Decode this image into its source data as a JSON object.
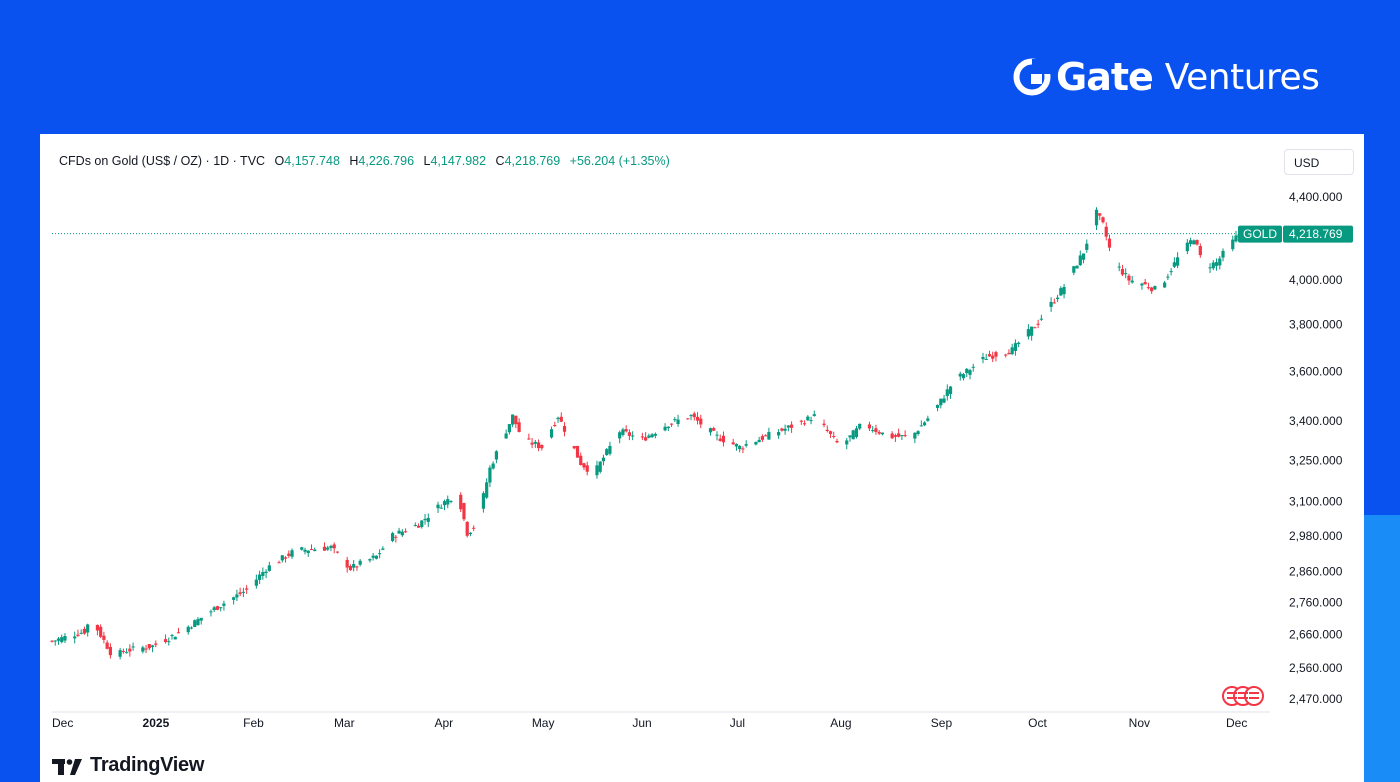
{
  "brand": {
    "name_bold": "Gate",
    "name_light": "Ventures",
    "logo_icon": "gate-logo-icon"
  },
  "header": {
    "symbol": "CFDs on Gold (US$ / OZ) · 1D · TVC",
    "open_label": "O",
    "open": "4,157.748",
    "high_label": "H",
    "high": "4,226.796",
    "low_label": "L",
    "low": "4,147.982",
    "close_label": "C",
    "close": "4,218.769",
    "change": "+56.204 (+1.35%)"
  },
  "currency_button": "USD",
  "footer": {
    "logo_text": "TradingView",
    "logo_icon": "tradingview-logo-icon"
  },
  "colors": {
    "background": "#0a52f0",
    "up": "#089981",
    "down": "#f23645",
    "accent": "#1a8cf7"
  },
  "chart_data": {
    "type": "candlestick",
    "title": "CFDs on Gold (US$ / OZ) · 1D · TVC",
    "scale": "log",
    "ylim": [
      2420,
      4520
    ],
    "y_ticks": [
      4400,
      4000,
      3800,
      3600,
      3400,
      3250,
      3100,
      2980,
      2860,
      2760,
      2660,
      2560,
      2470
    ],
    "y_tick_labels": [
      "4,400.000",
      "4,000.000",
      "3,800.000",
      "3,600.000",
      "3,400.000",
      "3,250.000",
      "3,100.000",
      "2,980.000",
      "2,860.000",
      "2,760.000",
      "2,660.000",
      "2,560.000",
      "2,470.000"
    ],
    "x_ticks": [
      {
        "label": "Dec",
        "day": 0
      },
      {
        "label": "2025",
        "day": 31
      },
      {
        "label": "Feb",
        "day": 62
      },
      {
        "label": "Mar",
        "day": 90
      },
      {
        "label": "Apr",
        "day": 121
      },
      {
        "label": "May",
        "day": 151
      },
      {
        "label": "Jun",
        "day": 182
      },
      {
        "label": "Jul",
        "day": 212
      },
      {
        "label": "Aug",
        "day": 243
      },
      {
        "label": "Sep",
        "day": 274
      },
      {
        "label": "Oct",
        "day": 304
      },
      {
        "label": "Nov",
        "day": 335
      },
      {
        "label": "Dec",
        "day": 365
      }
    ],
    "last_price_label": "GOLD",
    "last_price": 4218.769,
    "last_price_text": "4,218.769",
    "series": [
      {
        "name": "GOLD",
        "closes": [
          {
            "day": 0,
            "value": 2640
          },
          {
            "day": 10,
            "value": 2670
          },
          {
            "day": 12,
            "value": 2710
          },
          {
            "day": 19,
            "value": 2590
          },
          {
            "day": 22,
            "value": 2610
          },
          {
            "day": 31,
            "value": 2625
          },
          {
            "day": 40,
            "value": 2670
          },
          {
            "day": 50,
            "value": 2740
          },
          {
            "day": 60,
            "value": 2800
          },
          {
            "day": 66,
            "value": 2870
          },
          {
            "day": 75,
            "value": 2930
          },
          {
            "day": 86,
            "value": 2940
          },
          {
            "day": 92,
            "value": 2870
          },
          {
            "day": 100,
            "value": 2910
          },
          {
            "day": 105,
            "value": 2980
          },
          {
            "day": 113,
            "value": 3020
          },
          {
            "day": 120,
            "value": 3090
          },
          {
            "day": 125,
            "value": 3130
          },
          {
            "day": 128,
            "value": 2990
          },
          {
            "day": 131,
            "value": 3020
          },
          {
            "day": 135,
            "value": 3220
          },
          {
            "day": 142,
            "value": 3420
          },
          {
            "day": 145,
            "value": 3330
          },
          {
            "day": 151,
            "value": 3300
          },
          {
            "day": 156,
            "value": 3420
          },
          {
            "day": 163,
            "value": 3240
          },
          {
            "day": 167,
            "value": 3200
          },
          {
            "day": 175,
            "value": 3360
          },
          {
            "day": 182,
            "value": 3330
          },
          {
            "day": 190,
            "value": 3390
          },
          {
            "day": 197,
            "value": 3420
          },
          {
            "day": 205,
            "value": 3340
          },
          {
            "day": 212,
            "value": 3300
          },
          {
            "day": 220,
            "value": 3340
          },
          {
            "day": 230,
            "value": 3390
          },
          {
            "day": 235,
            "value": 3420
          },
          {
            "day": 243,
            "value": 3300
          },
          {
            "day": 250,
            "value": 3390
          },
          {
            "day": 258,
            "value": 3340
          },
          {
            "day": 265,
            "value": 3340
          },
          {
            "day": 272,
            "value": 3440
          },
          {
            "day": 278,
            "value": 3560
          },
          {
            "day": 288,
            "value": 3660
          },
          {
            "day": 296,
            "value": 3690
          },
          {
            "day": 304,
            "value": 3810
          },
          {
            "day": 312,
            "value": 3970
          },
          {
            "day": 318,
            "value": 4130
          },
          {
            "day": 322,
            "value": 4320
          },
          {
            "day": 324,
            "value": 4260
          },
          {
            "day": 327,
            "value": 4090
          },
          {
            "day": 332,
            "value": 4000
          },
          {
            "day": 335,
            "value": 3990
          },
          {
            "day": 341,
            "value": 3950
          },
          {
            "day": 347,
            "value": 4100
          },
          {
            "day": 352,
            "value": 4200
          },
          {
            "day": 355,
            "value": 4060
          },
          {
            "day": 359,
            "value": 4080
          },
          {
            "day": 363,
            "value": 4160
          },
          {
            "day": 366,
            "value": 4218.769
          }
        ]
      }
    ]
  }
}
